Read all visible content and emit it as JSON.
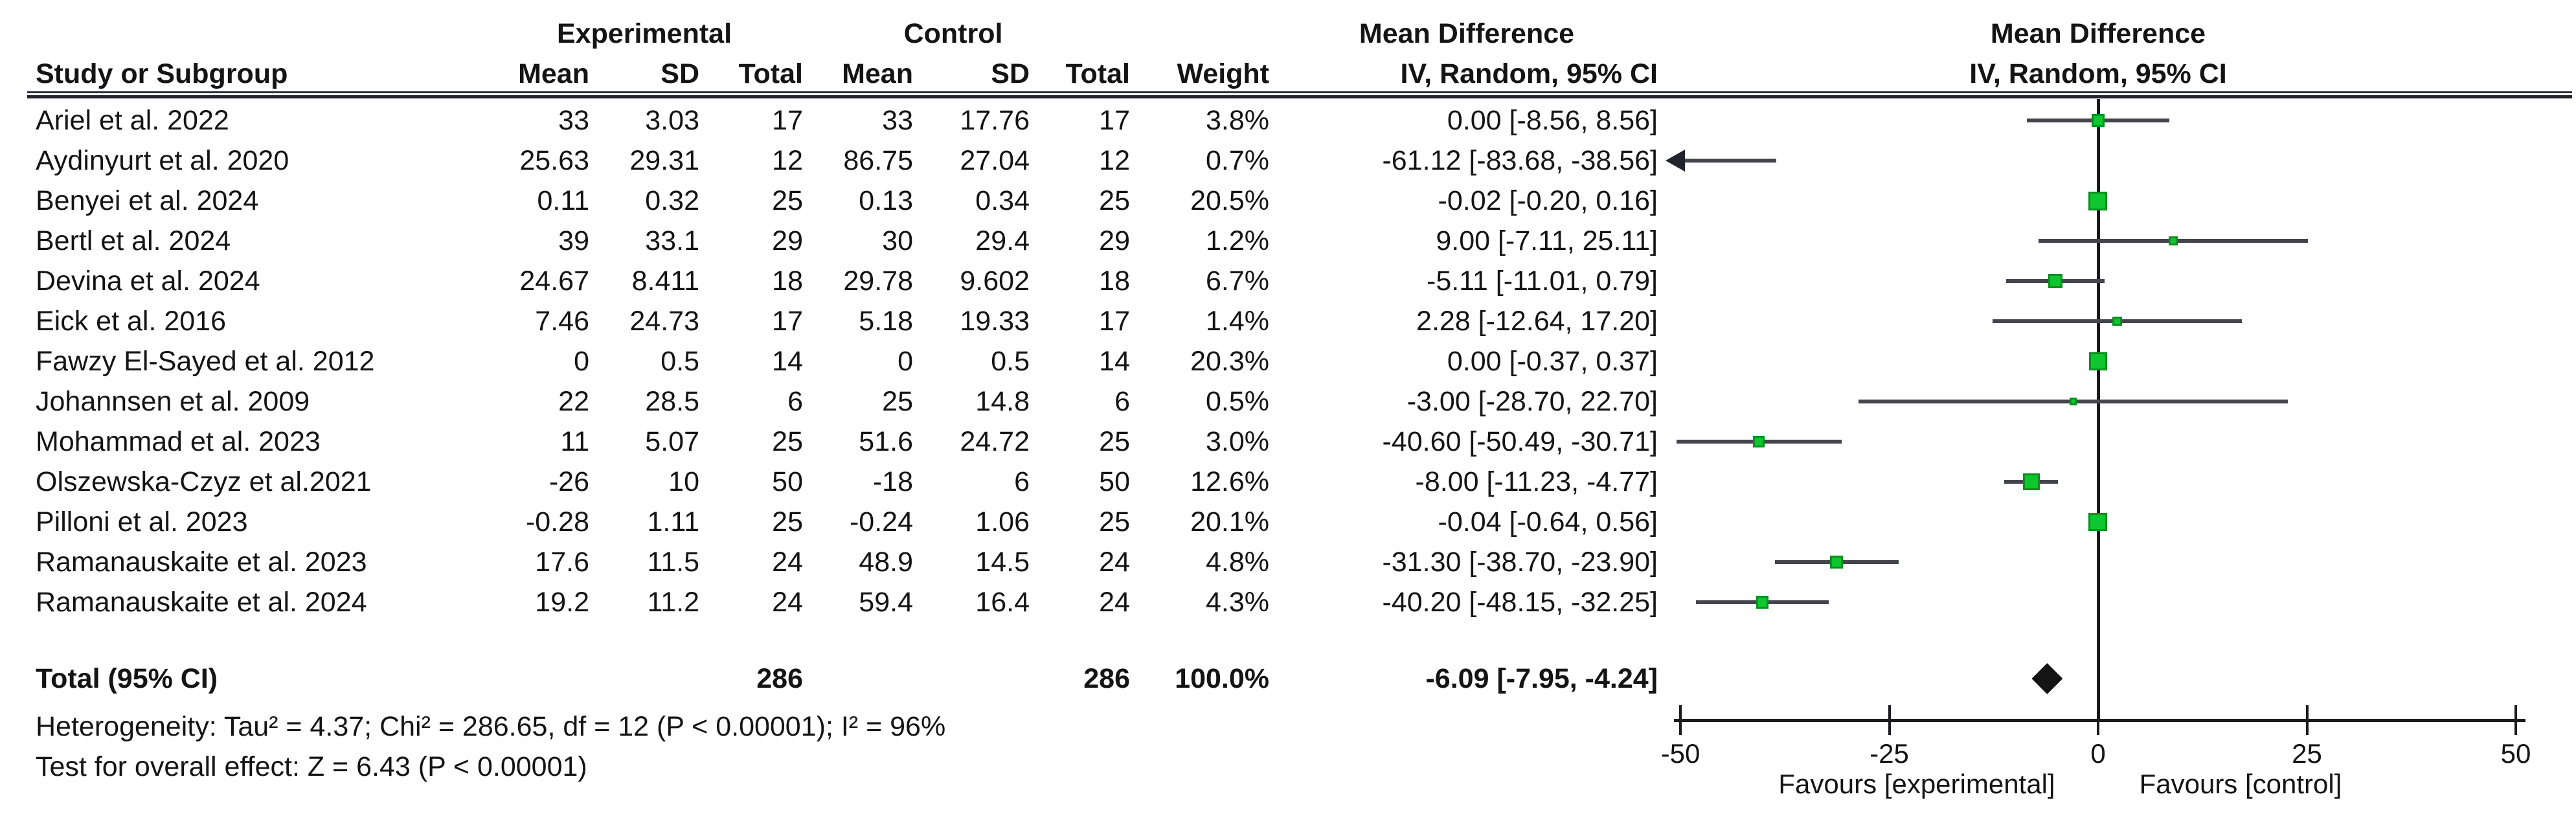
{
  "headers": {
    "experimental": "Experimental",
    "control": "Control",
    "md_text_col": "Mean Difference",
    "iv_text_col": "IV, Random, 95% CI",
    "md_plot_col": "Mean Difference",
    "iv_plot_col": "IV, Random, 95% CI",
    "study": "Study or Subgroup",
    "mean": "Mean",
    "sd": "SD",
    "total": "Total",
    "weight": "Weight"
  },
  "chart_data": {
    "type": "forest",
    "effect_measure": "Mean Difference",
    "method": "IV, Random, 95% CI",
    "x_axis": {
      "min": -50,
      "max": 50,
      "ticks": [
        {
          "value": -50,
          "label": "-50"
        },
        {
          "value": -25,
          "label": "-25"
        },
        {
          "value": 0,
          "label": "0"
        },
        {
          "value": 25,
          "label": "25"
        },
        {
          "value": 50,
          "label": "50"
        }
      ],
      "favours_left": "Favours [experimental]",
      "favours_right": "Favours [control]"
    },
    "studies": [
      {
        "name": "Ariel et al. 2022",
        "exp_mean": "33",
        "exp_sd": "3.03",
        "exp_total": "17",
        "ctl_mean": "33",
        "ctl_sd": "17.76",
        "ctl_total": "17",
        "weight_label": "3.8%",
        "weight": 3.8,
        "ci_label": "0.00 [-8.56, 8.56]",
        "md": 0.0,
        "lo": -8.56,
        "hi": 8.56
      },
      {
        "name": "Aydinyurt et al. 2020",
        "exp_mean": "25.63",
        "exp_sd": "29.31",
        "exp_total": "12",
        "ctl_mean": "86.75",
        "ctl_sd": "27.04",
        "ctl_total": "12",
        "weight_label": "0.7%",
        "weight": 0.7,
        "ci_label": "-61.12 [-83.68, -38.56]",
        "md": -61.12,
        "lo": -83.68,
        "hi": -38.56
      },
      {
        "name": "Benyei et al. 2024",
        "exp_mean": "0.11",
        "exp_sd": "0.32",
        "exp_total": "25",
        "ctl_mean": "0.13",
        "ctl_sd": "0.34",
        "ctl_total": "25",
        "weight_label": "20.5%",
        "weight": 20.5,
        "ci_label": "-0.02 [-0.20, 0.16]",
        "md": -0.02,
        "lo": -0.2,
        "hi": 0.16
      },
      {
        "name": "Bertl et al. 2024",
        "exp_mean": "39",
        "exp_sd": "33.1",
        "exp_total": "29",
        "ctl_mean": "30",
        "ctl_sd": "29.4",
        "ctl_total": "29",
        "weight_label": "1.2%",
        "weight": 1.2,
        "ci_label": "9.00 [-7.11, 25.11]",
        "md": 9.0,
        "lo": -7.11,
        "hi": 25.11
      },
      {
        "name": "Devina et al. 2024",
        "exp_mean": "24.67",
        "exp_sd": "8.411",
        "exp_total": "18",
        "ctl_mean": "29.78",
        "ctl_sd": "9.602",
        "ctl_total": "18",
        "weight_label": "6.7%",
        "weight": 6.7,
        "ci_label": "-5.11 [-11.01, 0.79]",
        "md": -5.11,
        "lo": -11.01,
        "hi": 0.79
      },
      {
        "name": "Eick et al. 2016",
        "exp_mean": "7.46",
        "exp_sd": "24.73",
        "exp_total": "17",
        "ctl_mean": "5.18",
        "ctl_sd": "19.33",
        "ctl_total": "17",
        "weight_label": "1.4%",
        "weight": 1.4,
        "ci_label": "2.28 [-12.64, 17.20]",
        "md": 2.28,
        "lo": -12.64,
        "hi": 17.2
      },
      {
        "name": "Fawzy El-Sayed et al. 2012",
        "exp_mean": "0",
        "exp_sd": "0.5",
        "exp_total": "14",
        "ctl_mean": "0",
        "ctl_sd": "0.5",
        "ctl_total": "14",
        "weight_label": "20.3%",
        "weight": 20.3,
        "ci_label": "0.00 [-0.37, 0.37]",
        "md": 0.0,
        "lo": -0.37,
        "hi": 0.37
      },
      {
        "name": "Johannsen et al. 2009",
        "exp_mean": "22",
        "exp_sd": "28.5",
        "exp_total": "6",
        "ctl_mean": "25",
        "ctl_sd": "14.8",
        "ctl_total": "6",
        "weight_label": "0.5%",
        "weight": 0.5,
        "ci_label": "-3.00 [-28.70, 22.70]",
        "md": -3.0,
        "lo": -28.7,
        "hi": 22.7
      },
      {
        "name": "Mohammad et al. 2023",
        "exp_mean": "11",
        "exp_sd": "5.07",
        "exp_total": "25",
        "ctl_mean": "51.6",
        "ctl_sd": "24.72",
        "ctl_total": "25",
        "weight_label": "3.0%",
        "weight": 3.0,
        "ci_label": "-40.60 [-50.49, -30.71]",
        "md": -40.6,
        "lo": -50.49,
        "hi": -30.71
      },
      {
        "name": "Olszewska-Czyz et al.2021",
        "exp_mean": "-26",
        "exp_sd": "10",
        "exp_total": "50",
        "ctl_mean": "-18",
        "ctl_sd": "6",
        "ctl_total": "50",
        "weight_label": "12.6%",
        "weight": 12.6,
        "ci_label": "-8.00 [-11.23, -4.77]",
        "md": -8.0,
        "lo": -11.23,
        "hi": -4.77
      },
      {
        "name": "Pilloni et al. 2023",
        "exp_mean": "-0.28",
        "exp_sd": "1.11",
        "exp_total": "25",
        "ctl_mean": "-0.24",
        "ctl_sd": "1.06",
        "ctl_total": "25",
        "weight_label": "20.1%",
        "weight": 20.1,
        "ci_label": "-0.04 [-0.64, 0.56]",
        "md": -0.04,
        "lo": -0.64,
        "hi": 0.56
      },
      {
        "name": "Ramanauskaite et al.  2023",
        "exp_mean": "17.6",
        "exp_sd": "11.5",
        "exp_total": "24",
        "ctl_mean": "48.9",
        "ctl_sd": "14.5",
        "ctl_total": "24",
        "weight_label": "4.8%",
        "weight": 4.8,
        "ci_label": "-31.30 [-38.70, -23.90]",
        "md": -31.3,
        "lo": -38.7,
        "hi": -23.9
      },
      {
        "name": "Ramanauskaite et al. 2024",
        "exp_mean": "19.2",
        "exp_sd": "11.2",
        "exp_total": "24",
        "ctl_mean": "59.4",
        "ctl_sd": "16.4",
        "ctl_total": "24",
        "weight_label": "4.3%",
        "weight": 4.3,
        "ci_label": "-40.20 [-48.15, -32.25]",
        "md": -40.2,
        "lo": -48.15,
        "hi": -32.25
      }
    ],
    "total": {
      "label": "Total (95% CI)",
      "exp_total": "286",
      "ctl_total": "286",
      "weight_label": "100.0%",
      "ci_label": "-6.09 [-7.95, -4.24]",
      "md": -6.09,
      "lo": -7.95,
      "hi": -4.24
    },
    "heterogeneity": "Heterogeneity: Tau² = 4.37; Chi² = 286.65, df = 12 (P < 0.00001); I² = 96%",
    "overall_effect": "Test for overall effect: Z = 6.43 (P < 0.00001)",
    "marker_color": "#0fc62e",
    "marker_border_color": "#0b8f1f",
    "ci_line_color": "#45454d",
    "axis_color": "#1b1b1f"
  }
}
